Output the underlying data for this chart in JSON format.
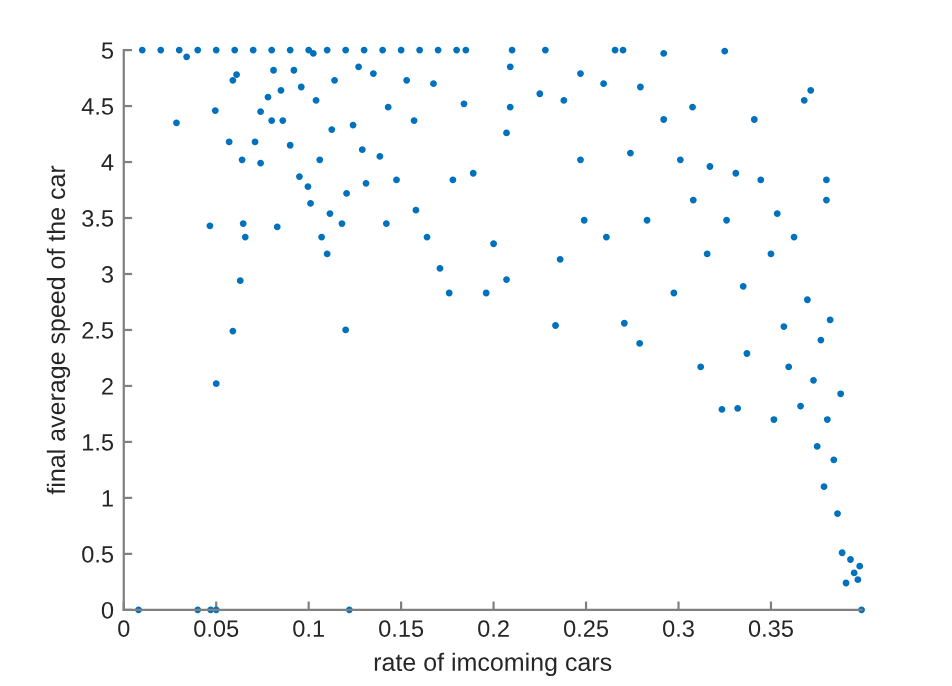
{
  "chart_data": {
    "type": "scatter",
    "xlabel": "rate of imcoming cars",
    "ylabel": "final average speed of the car",
    "xlim": [
      0,
      0.399
    ],
    "ylim": [
      0,
      5
    ],
    "xticks": [
      0,
      0.05,
      0.1,
      0.15,
      0.2,
      0.25,
      0.3,
      0.35
    ],
    "yticks": [
      0,
      0.5,
      1,
      1.5,
      2,
      2.5,
      3,
      3.5,
      4,
      4.5,
      5
    ],
    "marker": "circle",
    "grid": false,
    "series": [
      {
        "color": "#0072bd",
        "x": [
          0.01,
          0.02,
          0.03,
          0.04,
          0.05,
          0.06,
          0.07,
          0.08,
          0.09,
          0.1,
          0.11,
          0.12,
          0.13,
          0.14,
          0.15,
          0.16,
          0.17,
          0.18,
          0.185,
          0.21,
          0.27,
          0.008,
          0.04,
          0.047,
          0.05,
          0.122,
          0.399,
          0.0285,
          0.034,
          0.0466,
          0.0495,
          0.05,
          0.057,
          0.059,
          0.059,
          0.061,
          0.063,
          0.064,
          0.0646,
          0.0657,
          0.071,
          0.074,
          0.074,
          0.078,
          0.08,
          0.081,
          0.083,
          0.085,
          0.086,
          0.09,
          0.092,
          0.095,
          0.096,
          0.0996,
          0.101,
          0.1025,
          0.104,
          0.106,
          0.107,
          0.11,
          0.1115,
          0.1125,
          0.114,
          0.118,
          0.12,
          0.1205,
          0.124,
          0.127,
          0.129,
          0.131,
          0.135,
          0.1385,
          0.142,
          0.143,
          0.1475,
          0.153,
          0.157,
          0.158,
          0.164,
          0.1675,
          0.171,
          0.176,
          0.178,
          0.184,
          0.189,
          0.196,
          0.2,
          0.207,
          0.209,
          0.207,
          0.209,
          0.225,
          0.228,
          0.2335,
          0.236,
          0.238,
          0.247,
          0.247,
          0.249,
          0.2595,
          0.261,
          0.2657,
          0.2707,
          0.274,
          0.279,
          0.2794,
          0.283,
          0.292,
          0.292,
          0.2975,
          0.301,
          0.3076,
          0.308,
          0.312,
          0.3155,
          0.317,
          0.3235,
          0.325,
          0.326,
          0.331,
          0.332,
          0.335,
          0.337,
          0.341,
          0.3445,
          0.35,
          0.3516,
          0.3534,
          0.357,
          0.3596,
          0.3625,
          0.366,
          0.368,
          0.3697,
          0.3715,
          0.373,
          0.375,
          0.377,
          0.3787,
          0.38,
          0.38,
          0.3805,
          0.382,
          0.384,
          0.386,
          0.3877,
          0.3885,
          0.3906,
          0.393,
          0.395,
          0.397,
          0.398
        ],
        "values": [
          5,
          5,
          5,
          5,
          5,
          5,
          5,
          5,
          5,
          5,
          5,
          5,
          5,
          5,
          5,
          5,
          5,
          5,
          5,
          5,
          5,
          0,
          0,
          0,
          0,
          0,
          0,
          4.35,
          4.94,
          3.43,
          4.46,
          2.02,
          4.18,
          2.49,
          4.73,
          4.78,
          2.94,
          4.02,
          3.45,
          3.33,
          4.18,
          4.45,
          3.99,
          4.58,
          4.37,
          4.82,
          3.42,
          4.64,
          4.37,
          4.15,
          4.82,
          3.87,
          4.67,
          3.78,
          3.63,
          4.97,
          4.55,
          4.02,
          3.33,
          3.18,
          3.54,
          4.29,
          4.73,
          3.45,
          2.5,
          3.72,
          4.33,
          4.85,
          4.11,
          3.81,
          4.79,
          4.05,
          3.45,
          4.49,
          3.84,
          4.73,
          4.37,
          3.57,
          3.33,
          4.7,
          3.05,
          2.83,
          3.84,
          4.52,
          3.9,
          2.83,
          3.27,
          2.95,
          4.49,
          4.26,
          4.85,
          4.61,
          5,
          2.54,
          3.13,
          4.55,
          4.79,
          4.02,
          3.48,
          4.7,
          3.33,
          5,
          2.56,
          4.08,
          2.38,
          4.67,
          3.48,
          4.97,
          4.38,
          2.83,
          4.02,
          4.49,
          3.66,
          2.17,
          3.18,
          3.96,
          1.79,
          4.99,
          3.48,
          3.9,
          1.8,
          2.89,
          2.29,
          4.38,
          3.84,
          3.18,
          1.7,
          3.54,
          2.53,
          2.17,
          3.33,
          1.82,
          4.55,
          2.77,
          4.64,
          2.05,
          1.46,
          2.41,
          1.1,
          3.84,
          3.66,
          1.7,
          2.59,
          1.34,
          0.86,
          1.93,
          0.51,
          0.24,
          0.45,
          0.33,
          0.27,
          0.39
        ]
      }
    ]
  }
}
